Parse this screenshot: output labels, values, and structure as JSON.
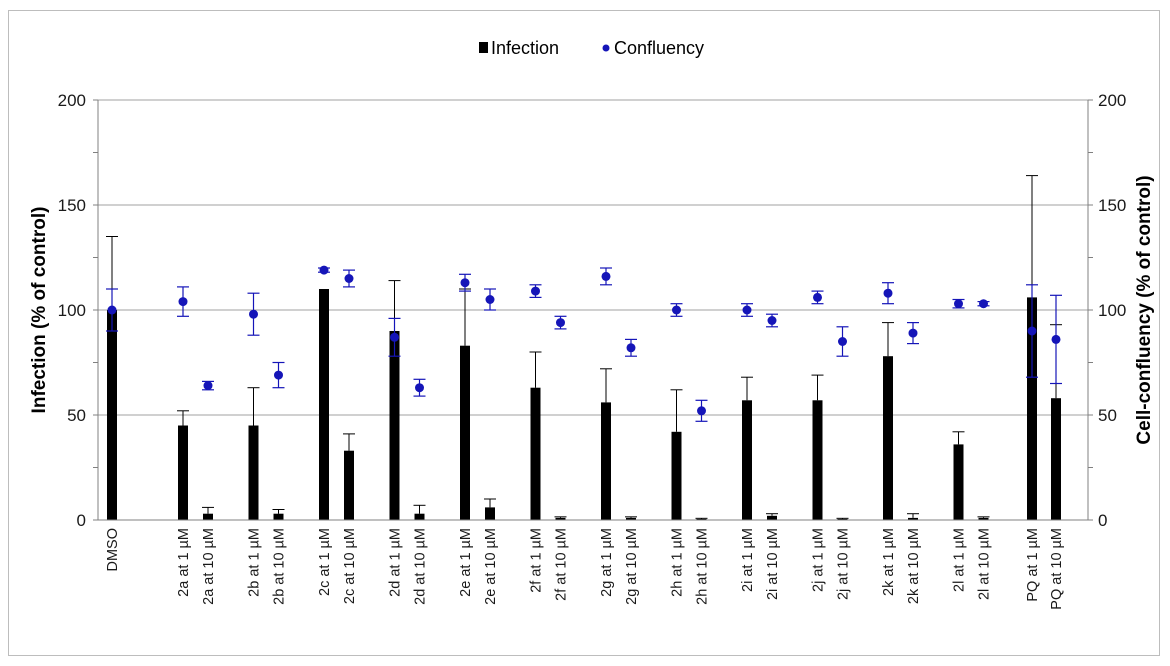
{
  "chart_data": {
    "type": "bar",
    "categories": [
      "DMSO",
      "2a at 1 µM",
      "2a at 10 µM",
      "2b at 1 µM",
      "2b at 10 µM",
      "2c at 1 µM",
      "2c at 10 µM",
      "2d at 1 µM",
      "2d at 10 µM",
      "2e at 1 µM",
      "2e at 10 µM",
      "2f at 1 µM",
      "2f at 10 µM",
      "2g at 1 µM",
      "2g at 10 µM",
      "2h at 1 µM",
      "2h at 10 µM",
      "2i at 1 µM",
      "2i at 10 µM",
      "2j at 1 µM",
      "2j at 10 µM",
      "2k at 1 µM",
      "2k at 10 µM",
      "2l at 1 µM",
      "2l at 10 µM",
      "PQ at 1 µM",
      "PQ at 10 µM"
    ],
    "series": [
      {
        "name": "Infection",
        "kind": "bar",
        "axis": "left",
        "color": "#000000",
        "values": [
          100,
          45,
          3,
          45,
          3,
          110,
          33,
          90,
          3,
          83,
          6,
          63,
          1,
          56,
          1,
          42,
          0.5,
          57,
          2,
          57,
          0.5,
          78,
          1,
          36,
          1,
          106,
          58
        ],
        "error_low": [
          0,
          0,
          0,
          0,
          0,
          0,
          0,
          0,
          0,
          0,
          0,
          0,
          0,
          0,
          0,
          0,
          0,
          0,
          0,
          0,
          0,
          0,
          0,
          0,
          0,
          0,
          0
        ],
        "error_high": [
          35,
          7,
          3,
          18,
          2,
          0,
          8,
          24,
          4,
          27,
          4,
          17,
          0.5,
          16,
          0.5,
          20,
          0.3,
          11,
          1,
          12,
          0.3,
          16,
          2,
          6,
          0.5,
          58,
          35
        ]
      },
      {
        "name": "Confluency",
        "kind": "scatter",
        "axis": "right",
        "color": "#1515b8",
        "values": [
          100,
          104,
          64,
          98,
          69,
          119,
          115,
          87,
          63,
          113,
          105,
          109,
          94,
          116,
          82,
          100,
          52,
          100,
          95,
          106,
          85,
          108,
          89,
          103,
          103,
          90,
          86
        ],
        "error": [
          10,
          7,
          2,
          10,
          6,
          1,
          4,
          9,
          4,
          4,
          5,
          3,
          3,
          4,
          4,
          3,
          5,
          3,
          3,
          3,
          7,
          5,
          5,
          2,
          1,
          22,
          21
        ]
      }
    ],
    "ylabel": "Infection (% of control)",
    "y2label": "Cell-confluency (% of control)",
    "ylim": [
      0,
      200
    ],
    "y2lim": [
      0,
      200
    ],
    "yticks": [
      0,
      50,
      100,
      150,
      200
    ],
    "grid": true,
    "legend": "top-center"
  }
}
